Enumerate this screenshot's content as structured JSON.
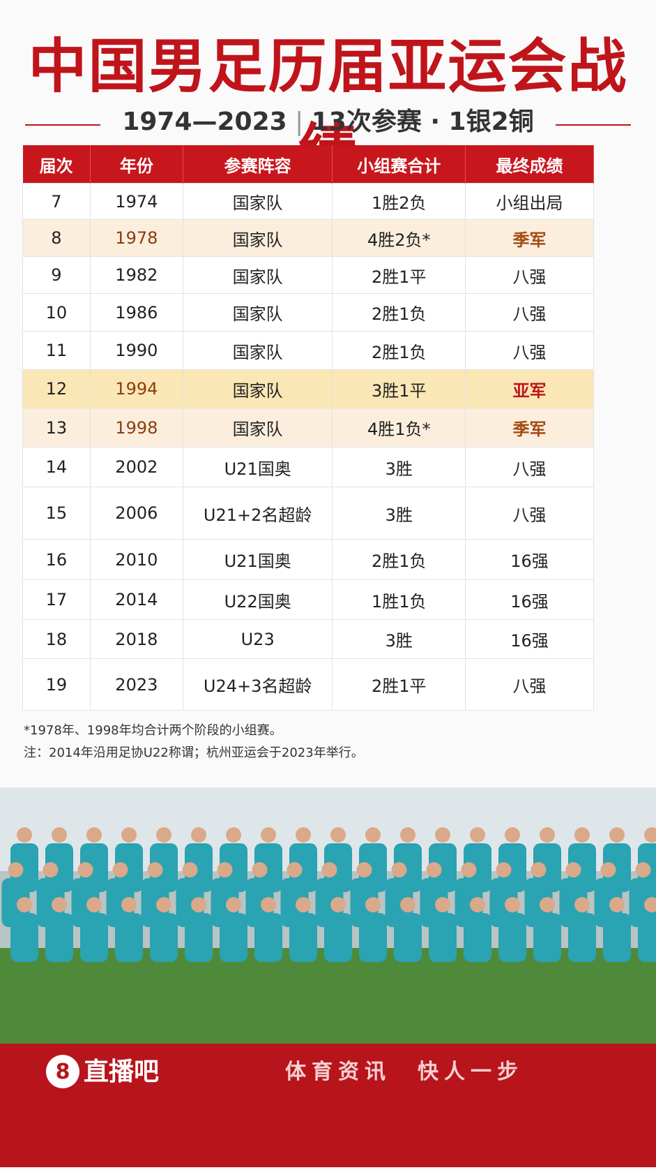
{
  "header": {
    "title": "中国男足历届亚运会战绩",
    "subtitle": "1974—2023",
    "subtitle_2": "13次参赛 · 1银2铜"
  },
  "table": {
    "headers": [
      "届次",
      "年份",
      "参赛阵容",
      "小组赛合计",
      "最终成绩"
    ],
    "rows": [
      [
        "7",
        "1974",
        "国家队",
        "1胜2负",
        "小组出局"
      ],
      [
        "8",
        "1978",
        "国家队",
        "4胜2负*",
        "季军"
      ],
      [
        "9",
        "1982",
        "国家队",
        "2胜1平",
        "八强"
      ],
      [
        "10",
        "1986",
        "国家队",
        "2胜1负",
        "八强"
      ],
      [
        "11",
        "1990",
        "国家队",
        "2胜1负",
        "八强"
      ],
      [
        "12",
        "1994",
        "国家队",
        "3胜1平",
        "亚军"
      ],
      [
        "13",
        "1998",
        "国家队",
        "4胜1负*",
        "季军"
      ],
      [
        "14",
        "2002",
        "U21国奥",
        "3胜",
        "八强"
      ],
      [
        "15",
        "2006",
        "U21+2名超龄",
        "3胜",
        "八强"
      ],
      [
        "16",
        "2010",
        "U21国奥",
        "2胜1负",
        "16强"
      ],
      [
        "17",
        "2014",
        "U22国奥",
        "1胜1负",
        "16强"
      ],
      [
        "18",
        "2018",
        "U23",
        "3胜",
        "16强"
      ],
      [
        "19",
        "2023",
        "U24+3名超龄",
        "2胜1平",
        "八强"
      ]
    ]
  },
  "notes": [
    "*1978年、1998年均合计两个阶段的小组赛。",
    "注：2014年沿用足协U22称谓；杭州亚运会于2023年举行。"
  ],
  "footer": {
    "logo": "直播吧",
    "logo_mark": "8",
    "slogan": "体育资讯　快人一步"
  }
}
